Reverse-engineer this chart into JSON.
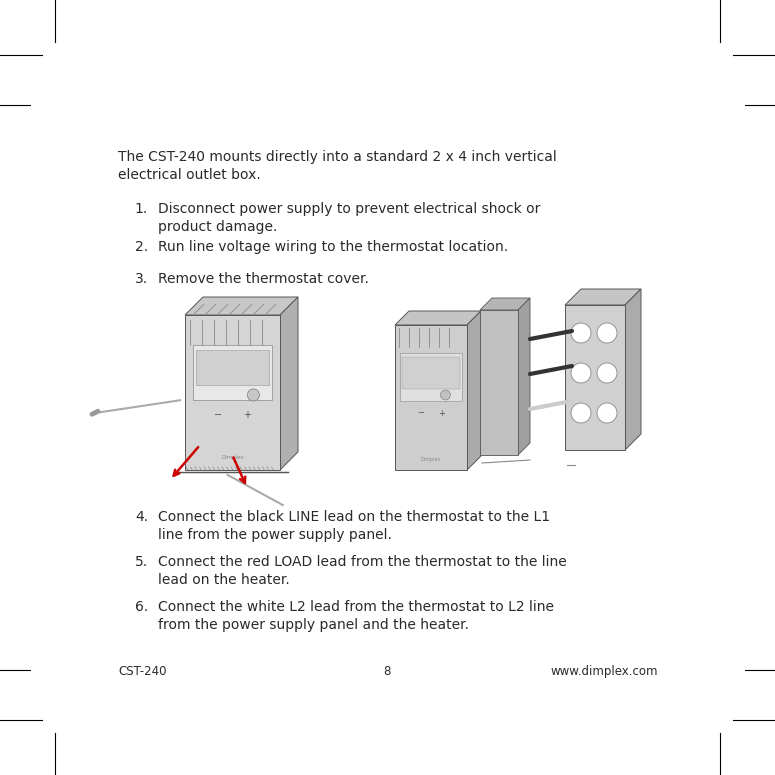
{
  "background_color": "#ffffff",
  "page_width": 7.75,
  "page_height": 7.75,
  "text_color": "#2a2a2a",
  "font_size_body": 10.0,
  "font_size_footer": 8.5,
  "footer_left": "CST-240",
  "footer_center": "8",
  "footer_right": "www.dimplex.com",
  "intro_text_line1": "The CST-240 mounts directly into a standard 2 x 4 inch vertical",
  "intro_text_line2": "electrical outlet box.",
  "steps_upper": [
    {
      "num": "1.",
      "line1": "Disconnect power supply to prevent electrical shock or",
      "line2": "product damage."
    },
    {
      "num": "2.",
      "line1": "Run line voltage wiring to the thermostat location.",
      "line2": ""
    },
    {
      "num": "3.",
      "line1": "Remove the thermostat cover.",
      "line2": ""
    }
  ],
  "steps_lower": [
    {
      "num": "4.",
      "line1": "Connect the black LINE lead on the thermostat to the L1",
      "line2": "line from the power supply panel."
    },
    {
      "num": "5.",
      "line1": "Connect the red LOAD lead from the thermostat to the line",
      "line2": "lead on the heater."
    },
    {
      "num": "6.",
      "line1": "Connect the white L2 lead from the thermostat to L2 line",
      "line2": "from the power supply panel and the heater."
    }
  ]
}
